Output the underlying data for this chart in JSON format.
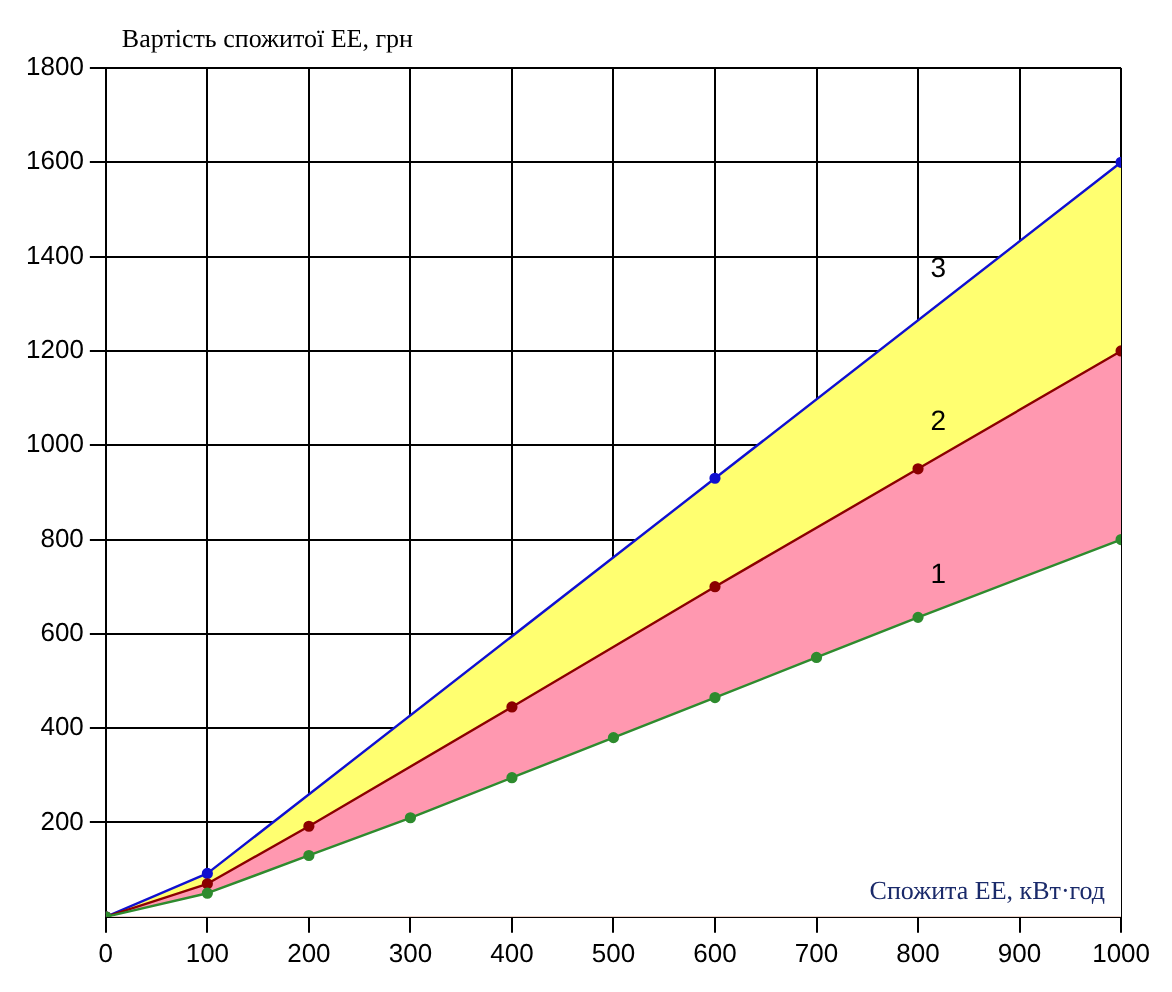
{
  "chart_data": {
    "type": "line",
    "xlabel": "Спожита ЕЕ, кВт·год",
    "ylabel": "Вартість спожитої ЕЕ, грн",
    "xlim": [
      0,
      1000
    ],
    "xticks": [
      0,
      100,
      200,
      300,
      400,
      500,
      600,
      700,
      800,
      900,
      1000
    ],
    "ylim": [
      0,
      1800
    ],
    "yticks": [
      200,
      400,
      600,
      800,
      1000,
      1200,
      1400,
      1600,
      1800
    ],
    "grid": true,
    "legend": false,
    "marker": "circle",
    "line_style": "solid",
    "series": [
      {
        "type": "area",
        "color": "#2e8b2e",
        "x": [
          0,
          100,
          200,
          300,
          400,
          500,
          600,
          700,
          800,
          1000
        ],
        "values": [
          0,
          50,
          130,
          210,
          295,
          380,
          465,
          550,
          635,
          800
        ]
      },
      {
        "type": "area",
        "color": "#8b0000",
        "x": [
          0,
          100,
          200,
          400,
          600,
          800,
          1000
        ],
        "values": [
          0,
          70,
          192,
          445,
          700,
          950,
          1200
        ]
      },
      {
        "type": "area",
        "color": "#1010d0",
        "x": [
          0,
          100,
          600,
          1000
        ],
        "values": [
          0,
          92,
          930,
          1600
        ]
      }
    ],
    "annotations": [
      "1",
      "2",
      "3"
    ]
  }
}
